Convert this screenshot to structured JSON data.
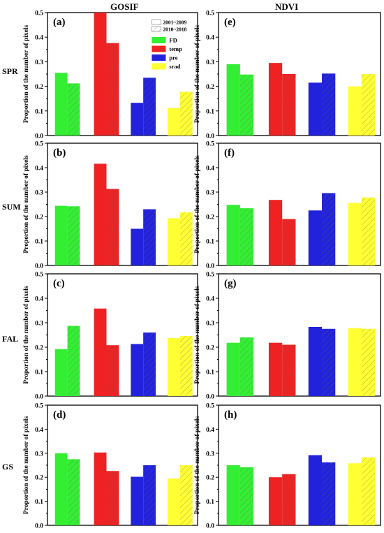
{
  "column_headers": [
    "GOSIF",
    "NDVI"
  ],
  "row_labels": [
    "SPR",
    "SUM",
    "FAL",
    "GS"
  ],
  "ylabel": "Proportion of the number of pixels",
  "periods": [
    "2001~2009",
    "2010~2018"
  ],
  "colors": {
    "FD": "#33ee33",
    "temp": "#ee2222",
    "pre": "#2222dd",
    "srad": "#ffff33"
  },
  "chart_data": [
    {
      "panel": "(a)",
      "type": "bar",
      "categories": [
        "FD",
        "temp",
        "pre",
        "srad"
      ],
      "ylim": [
        0,
        0.5
      ],
      "yticks": [
        "0.0",
        "0.1",
        "0.2",
        "0.3",
        "0.4",
        "0.5"
      ],
      "series": [
        {
          "name": "2001~2009",
          "values": [
            0.255,
            0.5,
            0.133,
            0.112
          ]
        },
        {
          "name": "2010~2018",
          "values": [
            0.212,
            0.376,
            0.235,
            0.178
          ]
        }
      ],
      "legend": {
        "periods": [
          "2001~2009",
          "2010~2018"
        ],
        "variables": [
          "FD",
          "temp",
          "pre",
          "srad"
        ]
      }
    },
    {
      "panel": "(b)",
      "type": "bar",
      "categories": [
        "FD",
        "temp",
        "pre",
        "srad"
      ],
      "ylim": [
        0,
        0.5
      ],
      "yticks": [
        "0.0",
        "0.1",
        "0.2",
        "0.3",
        "0.4",
        "0.5"
      ],
      "series": [
        {
          "name": "2001~2009",
          "values": [
            0.244,
            0.416,
            0.15,
            0.193
          ]
        },
        {
          "name": "2010~2018",
          "values": [
            0.242,
            0.313,
            0.23,
            0.217
          ]
        }
      ]
    },
    {
      "panel": "(c)",
      "type": "bar",
      "categories": [
        "FD",
        "temp",
        "pre",
        "srad"
      ],
      "ylim": [
        0,
        0.5
      ],
      "yticks": [
        "0.0",
        "0.1",
        "0.2",
        "0.3",
        "0.4",
        "0.5"
      ],
      "series": [
        {
          "name": "2001~2009",
          "values": [
            0.192,
            0.358,
            0.213,
            0.237
          ]
        },
        {
          "name": "2010~2018",
          "values": [
            0.287,
            0.208,
            0.26,
            0.246
          ]
        }
      ]
    },
    {
      "panel": "(d)",
      "type": "bar",
      "categories": [
        "FD",
        "temp",
        "pre",
        "srad"
      ],
      "ylim": [
        0,
        0.5
      ],
      "yticks": [
        "0.0",
        "0.1",
        "0.2",
        "0.3",
        "0.4",
        "0.5"
      ],
      "series": [
        {
          "name": "2001~2009",
          "values": [
            0.3,
            0.303,
            0.202,
            0.195
          ]
        },
        {
          "name": "2010~2018",
          "values": [
            0.275,
            0.226,
            0.25,
            0.25
          ]
        }
      ]
    },
    {
      "panel": "(e)",
      "type": "bar",
      "categories": [
        "FD",
        "temp",
        "pre",
        "srad"
      ],
      "ylim": [
        0,
        0.5
      ],
      "yticks": [
        "0.0",
        "0.1",
        "0.2",
        "0.3",
        "0.4",
        "0.5"
      ],
      "series": [
        {
          "name": "2001~2009",
          "values": [
            0.29,
            0.295,
            0.215,
            0.2
          ]
        },
        {
          "name": "2010~2018",
          "values": [
            0.248,
            0.25,
            0.252,
            0.25
          ]
        }
      ]
    },
    {
      "panel": "(f)",
      "type": "bar",
      "categories": [
        "FD",
        "temp",
        "pre",
        "srad"
      ],
      "ylim": [
        0,
        0.5
      ],
      "yticks": [
        "0.0",
        "0.1",
        "0.2",
        "0.3",
        "0.4",
        "0.5"
      ],
      "series": [
        {
          "name": "2001~2009",
          "values": [
            0.248,
            0.268,
            0.225,
            0.256
          ]
        },
        {
          "name": "2010~2018",
          "values": [
            0.234,
            0.19,
            0.296,
            0.278
          ]
        }
      ]
    },
    {
      "panel": "(g)",
      "type": "bar",
      "categories": [
        "FD",
        "temp",
        "pre",
        "srad"
      ],
      "ylim": [
        0,
        0.5
      ],
      "yticks": [
        "0.0",
        "0.1",
        "0.2",
        "0.3",
        "0.4",
        "0.5"
      ],
      "series": [
        {
          "name": "2001~2009",
          "values": [
            0.218,
            0.218,
            0.283,
            0.278
          ]
        },
        {
          "name": "2010~2018",
          "values": [
            0.24,
            0.21,
            0.275,
            0.275
          ]
        }
      ]
    },
    {
      "panel": "(h)",
      "type": "bar",
      "categories": [
        "FD",
        "temp",
        "pre",
        "srad"
      ],
      "ylim": [
        0,
        0.5
      ],
      "yticks": [
        "0.0",
        "0.1",
        "0.2",
        "0.3",
        "0.4",
        "0.5"
      ],
      "series": [
        {
          "name": "2001~2009",
          "values": [
            0.25,
            0.2,
            0.292,
            0.258
          ]
        },
        {
          "name": "2010~2018",
          "values": [
            0.242,
            0.213,
            0.262,
            0.283
          ]
        }
      ]
    }
  ]
}
